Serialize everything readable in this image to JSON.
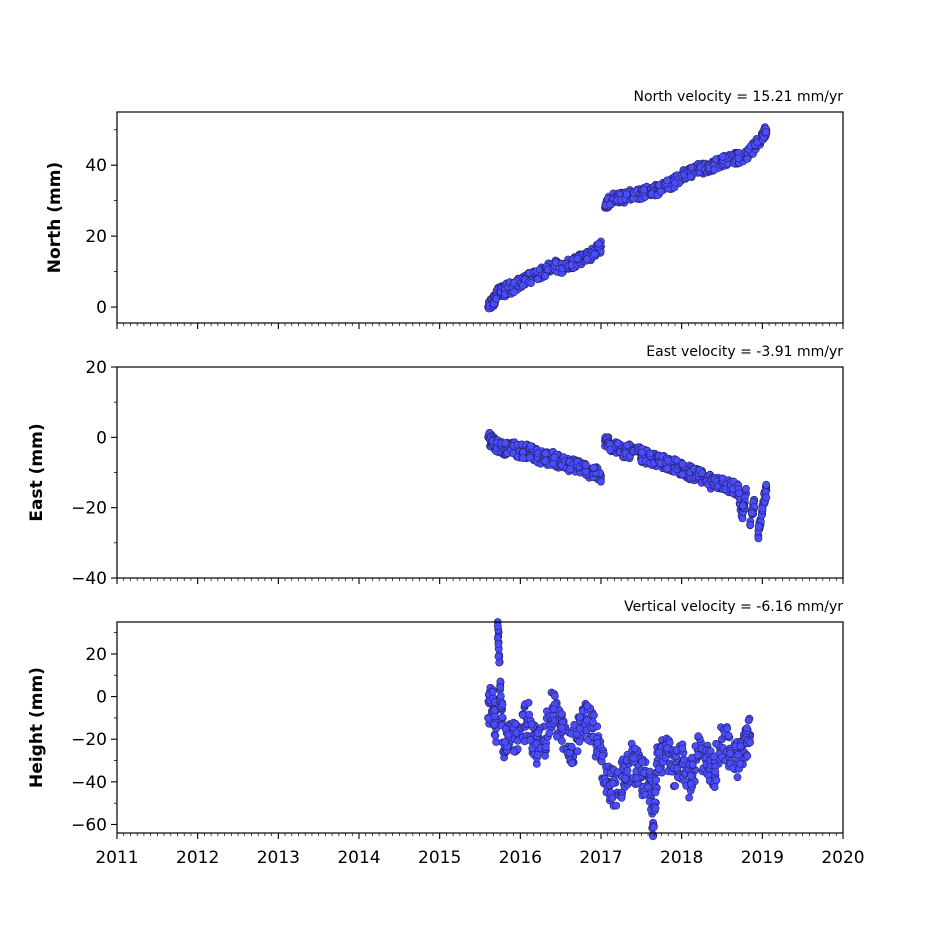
{
  "chart_data": [
    {
      "type": "scatter",
      "title": "North velocity = 15.21 mm/yr",
      "ylabel": "North (mm)",
      "xlabel": "",
      "xlim": [
        2011,
        2020
      ],
      "ylim": [
        -4.5,
        55
      ],
      "yticks": [
        0,
        20,
        40
      ],
      "xticks": [
        2011,
        2012,
        2013,
        2014,
        2015,
        2016,
        2017,
        2018,
        2019,
        2020
      ],
      "show_xtick_labels": false,
      "grid": false,
      "series": [
        {
          "color": "#4c4cff",
          "x": [
            2015.6,
            2015.65,
            2015.7,
            2015.75,
            2015.8,
            2015.85,
            2015.9,
            2016.0,
            2016.1,
            2016.2,
            2016.3,
            2016.4,
            2016.5,
            2016.6,
            2016.7,
            2016.8,
            2016.9,
            2017.0,
            2017.05,
            2017.1,
            2017.2,
            2017.3,
            2017.4,
            2017.5,
            2017.6,
            2017.7,
            2017.8,
            2017.9,
            2018.0,
            2018.1,
            2018.2,
            2018.3,
            2018.4,
            2018.5,
            2018.6,
            2018.7,
            2018.8,
            2018.9,
            2019.0,
            2019.05
          ],
          "y": [
            0,
            1,
            3,
            5,
            4,
            6,
            5,
            7,
            8,
            9,
            10,
            12,
            11,
            12,
            13,
            14,
            15,
            17,
            28,
            30,
            31,
            31,
            32,
            32,
            33,
            33,
            34,
            35,
            37,
            38,
            39,
            39,
            40,
            41,
            42,
            42,
            43,
            45,
            48,
            50
          ]
        }
      ]
    },
    {
      "type": "scatter",
      "title": "East velocity = -3.91 mm/yr",
      "ylabel": "East (mm)",
      "xlabel": "",
      "xlim": [
        2011,
        2020
      ],
      "ylim": [
        -40,
        20
      ],
      "yticks": [
        -40,
        -20,
        0,
        20
      ],
      "xticks": [
        2011,
        2012,
        2013,
        2014,
        2015,
        2016,
        2017,
        2018,
        2019,
        2020
      ],
      "show_xtick_labels": false,
      "grid": false,
      "series": [
        {
          "color": "#4c4cff",
          "x": [
            2015.6,
            2015.65,
            2015.7,
            2015.75,
            2015.8,
            2015.9,
            2016.0,
            2016.1,
            2016.2,
            2016.3,
            2016.4,
            2016.5,
            2016.6,
            2016.7,
            2016.8,
            2016.9,
            2017.0,
            2017.05,
            2017.1,
            2017.2,
            2017.3,
            2017.4,
            2017.5,
            2017.6,
            2017.7,
            2017.8,
            2017.9,
            2018.0,
            2018.1,
            2018.2,
            2018.3,
            2018.4,
            2018.5,
            2018.6,
            2018.7,
            2018.75,
            2018.8,
            2018.85,
            2018.9,
            2018.95,
            2019.0,
            2019.05
          ],
          "y": [
            0,
            -1,
            -2,
            -3,
            -3,
            -3,
            -4,
            -4,
            -5,
            -6,
            -6,
            -7,
            -8,
            -8,
            -9,
            -10,
            -11,
            -1,
            -2,
            -3,
            -4,
            -4,
            -5,
            -6,
            -7,
            -7,
            -8,
            -9,
            -10,
            -11,
            -12,
            -13,
            -13,
            -14,
            -15,
            -22,
            -16,
            -25,
            -18,
            -28,
            -20,
            -15
          ]
        }
      ]
    },
    {
      "type": "scatter",
      "title": "Vertical velocity = -6.16 mm/yr",
      "ylabel": "Height (mm)",
      "xlabel": "",
      "xlim": [
        2011,
        2020
      ],
      "ylim": [
        -64,
        35
      ],
      "yticks": [
        -60,
        -40,
        -20,
        0,
        20
      ],
      "xticks": [
        2011,
        2012,
        2013,
        2014,
        2015,
        2016,
        2017,
        2018,
        2019,
        2020
      ],
      "show_xtick_labels": true,
      "grid": false,
      "series": [
        {
          "color": "#4c4cff",
          "x": [
            2015.6,
            2015.65,
            2015.7,
            2015.72,
            2015.75,
            2015.8,
            2015.9,
            2016.0,
            2016.1,
            2016.2,
            2016.3,
            2016.4,
            2016.5,
            2016.6,
            2016.7,
            2016.8,
            2016.9,
            2017.0,
            2017.1,
            2017.2,
            2017.3,
            2017.4,
            2017.5,
            2017.6,
            2017.65,
            2017.7,
            2017.8,
            2017.9,
            2018.0,
            2018.1,
            2018.2,
            2018.3,
            2018.4,
            2018.5,
            2018.6,
            2018.7,
            2018.8,
            2018.85
          ],
          "y": [
            -10,
            0,
            -15,
            35,
            5,
            -25,
            -20,
            -15,
            -10,
            -25,
            -20,
            -5,
            -15,
            -25,
            -20,
            -10,
            -15,
            -30,
            -40,
            -45,
            -35,
            -30,
            -38,
            -40,
            -60,
            -30,
            -25,
            -35,
            -30,
            -40,
            -25,
            -30,
            -35,
            -20,
            -25,
            -30,
            -20,
            -18
          ]
        }
      ]
    }
  ]
}
